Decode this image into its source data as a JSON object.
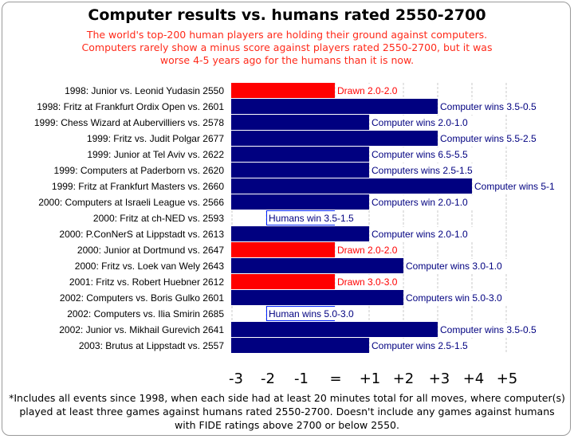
{
  "chart_data": {
    "type": "bar",
    "orientation": "horizontal",
    "title": "Computer results vs. humans rated 2550-2700",
    "subtitle": "The world's top-200 human players are holding their ground against computers.  Computers rarely show a minus score against players rated 2550-2700, but it was worse 4-5 years ago for the humans than it is now.",
    "footnote": "*Includes all events since 1998, when each side had at least 20 minutes total for all moves, where computer(s) played at least three games against humans rated 2550-2700. Doesn't include any games against humans with FIDE ratings above 2700 or below 2550.",
    "xlim": [
      -3,
      5
    ],
    "xticks": [
      "-3",
      "-2",
      "-1",
      "=",
      "+1",
      "+2",
      "+3",
      "+4",
      "+5"
    ],
    "grid": true,
    "colors": {
      "computer_win": "#000080",
      "drawn": "#ff0000",
      "human_win": "#0022ff"
    },
    "rows": [
      {
        "label": "1998: Junior vs. Leonid Yudasin 2550",
        "value": 0,
        "result": "Drawn 2.0-2.0",
        "kind": "drawn"
      },
      {
        "label": "1998: Fritz at Frankfurt Ordix Open vs. 2601",
        "value": 3,
        "result": "Computer wins 3.5-0.5",
        "kind": "computer_win"
      },
      {
        "label": "1999: Chess Wizard at Aubervilliers vs. 2578",
        "value": 1,
        "result": "Computer wins 2.0-1.0",
        "kind": "computer_win"
      },
      {
        "label": "1999: Fritz vs. Judit Polgar 2677",
        "value": 3,
        "result": "Computer wins 5.5-2.5",
        "kind": "computer_win"
      },
      {
        "label": "1999: Junior at Tel Aviv vs. 2622",
        "value": 1,
        "result": "Computer wins 6.5-5.5",
        "kind": "computer_win"
      },
      {
        "label": "1999: Computers at Paderborn vs. 2620",
        "value": 1,
        "result": "Computers wins 2.5-1.5",
        "kind": "computer_win"
      },
      {
        "label": "1999: Fritz at Frankfurt Masters vs. 2660",
        "value": 4,
        "result": "Computer wins 5-1",
        "kind": "computer_win"
      },
      {
        "label": "2000: Computers at Israeli League vs. 2566",
        "value": 1,
        "result": "Computers win 2.0-1.0",
        "kind": "computer_win"
      },
      {
        "label": "2000: Fritz at ch-NED vs. 2593",
        "value": -2,
        "result": "Humans win 3.5-1.5",
        "kind": "human_win"
      },
      {
        "label": "2000: P.ConNerS at Lippstadt vs. 2613",
        "value": 1,
        "result": "Computer wins 2.0-1.0",
        "kind": "computer_win"
      },
      {
        "label": "2000: Junior at Dortmund vs. 2647",
        "value": 0,
        "result": "Drawn 2.0-2.0",
        "kind": "drawn"
      },
      {
        "label": "2000: Fritz vs. Loek van Wely 2643",
        "value": 2,
        "result": "Computer wins 3.0-1.0",
        "kind": "computer_win"
      },
      {
        "label": "2001: Fritz vs. Robert Huebner 2612",
        "value": 0,
        "result": "Drawn 3.0-3.0",
        "kind": "drawn"
      },
      {
        "label": "2002: Computers vs. Boris Gulko 2601",
        "value": 2,
        "result": "Computers win 5.0-3.0",
        "kind": "computer_win"
      },
      {
        "label": "2002: Computers vs. Ilia Smirin 2685",
        "value": -2,
        "result": "Human wins 5.0-3.0",
        "kind": "human_win"
      },
      {
        "label": "2002: Junior vs. Mikhail Gurevich 2641",
        "value": 3,
        "result": "Computer wins 3.5-0.5",
        "kind": "computer_win"
      },
      {
        "label": "2003: Brutus at Lippstadt vs. 2557",
        "value": 1,
        "result": "Computer wins 2.5-1.5",
        "kind": "computer_win"
      }
    ]
  }
}
